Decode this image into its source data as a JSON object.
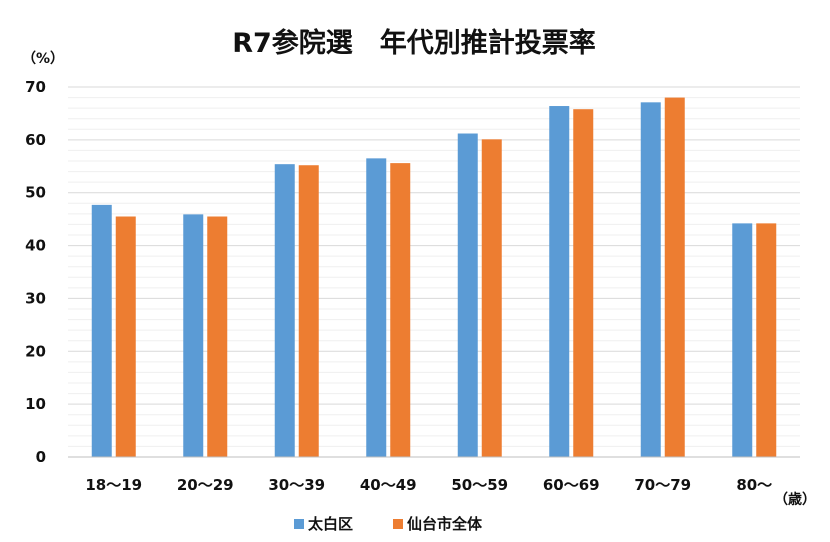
{
  "chart_data": {
    "type": "bar",
    "title": "R7参院選　年代別推計投票率",
    "ylabel": "（%）",
    "xlabel": "（歳）",
    "ylim": [
      0,
      70
    ],
    "yticks": [
      0,
      10,
      20,
      30,
      40,
      50,
      60,
      70
    ],
    "grid": true,
    "legend_position": "bottom",
    "categories": [
      "18～19",
      "20～29",
      "30～39",
      "40～49",
      "50～59",
      "60～69",
      "70～79",
      "80～"
    ],
    "series": [
      {
        "name": "太白区",
        "color": "#5b9bd5",
        "values": [
          47.7,
          45.9,
          55.4,
          56.5,
          61.2,
          66.4,
          67.1,
          44.2
        ]
      },
      {
        "name": "仙台市全体",
        "color": "#ed7d31",
        "values": [
          45.5,
          45.5,
          55.2,
          55.6,
          60.1,
          65.8,
          68.0,
          44.2
        ]
      }
    ]
  }
}
